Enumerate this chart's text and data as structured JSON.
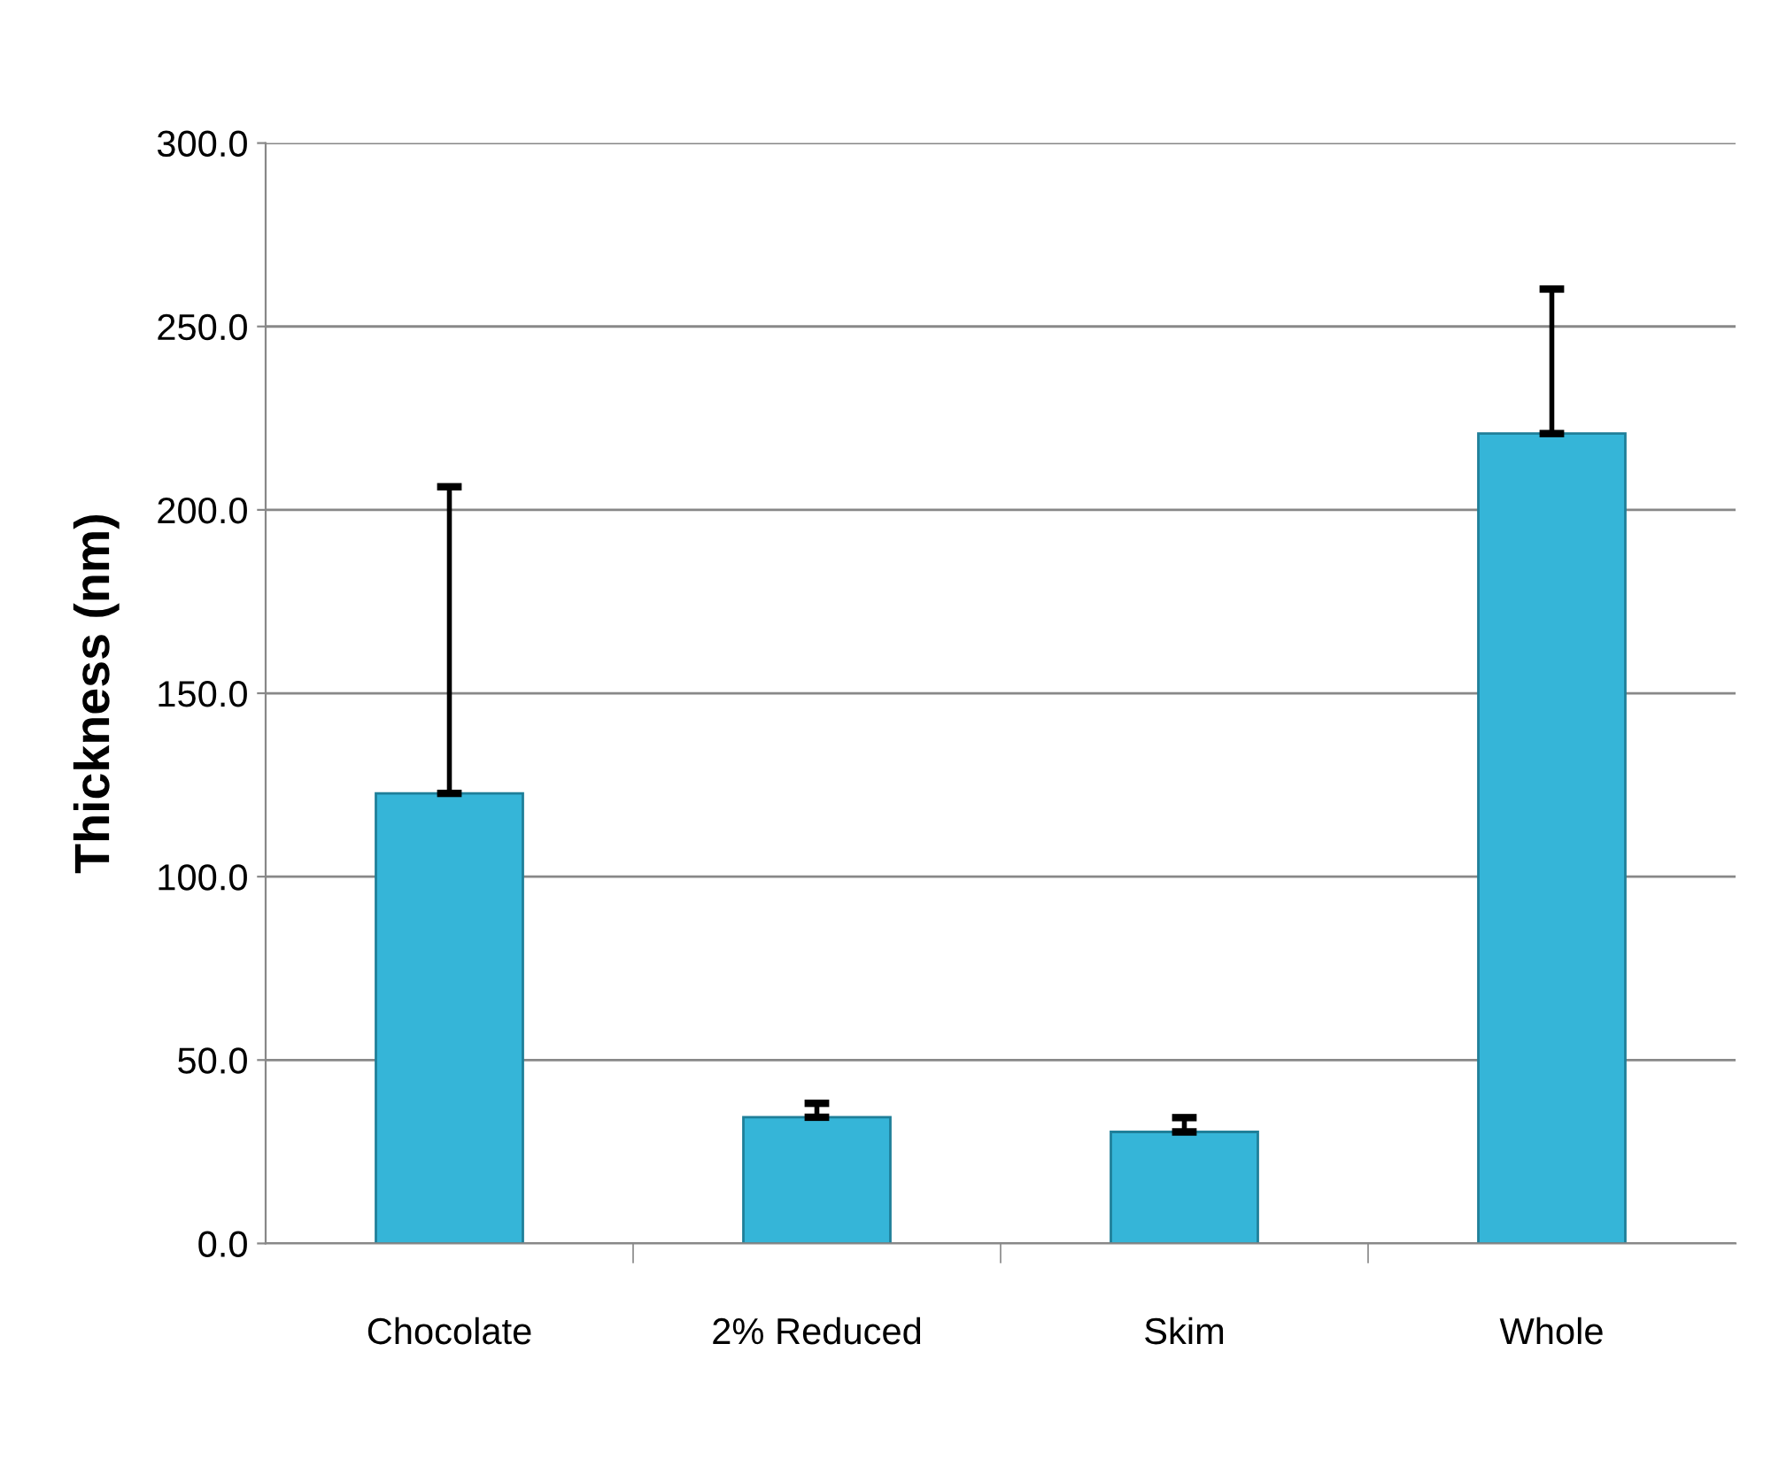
{
  "chart_data": {
    "type": "bar",
    "ylabel": "Thickness (nm)",
    "categories": [
      "Chocolate",
      "2% Reduced",
      "Skim",
      "Whole"
    ],
    "values": [
      122.7,
      34.4,
      30.4,
      220.8
    ],
    "errors": [
      83.6,
      3.8,
      3.9,
      39.4
    ],
    "color": "#35b5d8",
    "ylim": [
      0,
      300
    ],
    "yticks": [
      {
        "value": 0,
        "label": "0.0"
      },
      {
        "value": 50,
        "label": "50.0"
      },
      {
        "value": 100,
        "label": "100.0"
      },
      {
        "value": 150,
        "label": "150.0"
      },
      {
        "value": 200,
        "label": "200.0"
      },
      {
        "value": 250,
        "label": "250.0"
      },
      {
        "value": 300,
        "label": "300.0"
      }
    ],
    "grid": "y",
    "legend": false
  }
}
